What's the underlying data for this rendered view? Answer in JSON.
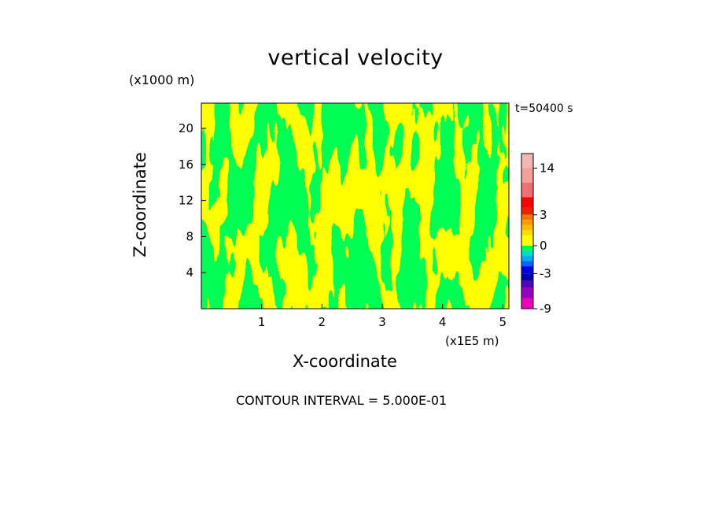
{
  "chart_data": {
    "type": "heatmap",
    "title": "vertical velocity",
    "xlabel": "X-coordinate",
    "ylabel": "Z-coordinate",
    "x_unit_label": "(x1E5 m)",
    "y_unit_label": "(x1000 m)",
    "time_label": "t=50400 s",
    "note": "CONTOUR INTERVAL = 5.000E-01",
    "xlim": [
      0,
      5.1
    ],
    "ylim": [
      0,
      22.8
    ],
    "x_ticks": [
      "1",
      "2",
      "3",
      "4",
      "5"
    ],
    "y_ticks": [
      "4",
      "8",
      "12",
      "16",
      "20"
    ],
    "dominant_fill": {
      "positive": "#ffff00",
      "negative": "#00ff55"
    },
    "colorbar": {
      "tick_labels": [
        "14",
        "3",
        "0",
        "-3",
        "-9"
      ],
      "bands": [
        {
          "from": 14,
          "to": 18,
          "color": "#f4b6b2"
        },
        {
          "from": 10,
          "to": 14,
          "color": "#f4a09a"
        },
        {
          "from": 6,
          "to": 10,
          "color": "#ef7070"
        },
        {
          "from": 4,
          "to": 6,
          "color": "#ff0000"
        },
        {
          "from": 3,
          "to": 4,
          "color": "#ee2200"
        },
        {
          "from": 2.5,
          "to": 3,
          "color": "#ee7700"
        },
        {
          "from": 2,
          "to": 2.5,
          "color": "#ff9900"
        },
        {
          "from": 1.5,
          "to": 2,
          "color": "#ffbb00"
        },
        {
          "from": 1,
          "to": 1.5,
          "color": "#ffdd00"
        },
        {
          "from": 0.5,
          "to": 1,
          "color": "#ffff00"
        },
        {
          "from": 0,
          "to": 0.5,
          "color": "#ffff00"
        },
        {
          "from": -0.5,
          "to": 0,
          "color": "#00ff55"
        },
        {
          "from": -1,
          "to": -0.5,
          "color": "#00ddcc"
        },
        {
          "from": -1.5,
          "to": -1,
          "color": "#00aaff"
        },
        {
          "from": -2,
          "to": -1.5,
          "color": "#0066ff"
        },
        {
          "from": -3,
          "to": -2,
          "color": "#0000dd"
        },
        {
          "from": -4,
          "to": -3,
          "color": "#0000aa"
        },
        {
          "from": -5,
          "to": -4,
          "color": "#5500bb"
        },
        {
          "from": -7,
          "to": -5,
          "color": "#9900bb"
        },
        {
          "from": -9,
          "to": -7,
          "color": "#ee00bb"
        }
      ]
    }
  }
}
